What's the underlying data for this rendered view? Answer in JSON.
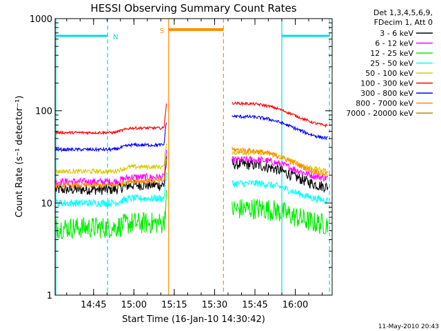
{
  "chart_data": {
    "type": "line",
    "title": "HESSI Observing Summary Count Rates",
    "xlabel": "Start Time (16-Jan-10 14:30:42)",
    "ylabel": "Count Rate (s⁻¹ detector⁻¹)",
    "yscale": "log",
    "ylim": [
      1,
      1000
    ],
    "xlim_minutes": [
      0,
      103
    ],
    "x_ticks": [
      {
        "t": 14.3,
        "label": "14:45"
      },
      {
        "t": 29.3,
        "label": "15:00"
      },
      {
        "t": 44.3,
        "label": "15:15"
      },
      {
        "t": 59.3,
        "label": "15:30"
      },
      {
        "t": 74.3,
        "label": "15:45"
      },
      {
        "t": 89.3,
        "label": "16:00"
      }
    ],
    "y_ticks": [
      {
        "v": 1,
        "label": "1"
      },
      {
        "v": 10,
        "label": "10"
      },
      {
        "v": 100,
        "label": "100"
      },
      {
        "v": 1000,
        "label": "1000"
      }
    ],
    "legend_header": [
      "Det 1,3,4,5,6,9,",
      "FDecim 1, Att 0"
    ],
    "legend_position": "right",
    "series": [
      {
        "name": "3 - 6 keV",
        "color": "#000000",
        "base": 14,
        "post": 28,
        "end": 16,
        "noise": 0.06
      },
      {
        "name": "6 - 12 keV",
        "color": "#ff00ff",
        "base": 17,
        "post": 31,
        "end": 20,
        "noise": 0.04
      },
      {
        "name": "12 - 25 keV",
        "color": "#00ee00",
        "base": 5.4,
        "post": 9,
        "end": 6.3,
        "noise": 0.12
      },
      {
        "name": "25 - 50 keV",
        "color": "#00ffff",
        "base": 10,
        "post": 17,
        "end": 11.5,
        "noise": 0.04
      },
      {
        "name": "50 - 100 keV",
        "color": "#d6c800",
        "base": 22,
        "post": 37,
        "end": 24,
        "noise": 0.025
      },
      {
        "name": "100 - 300 keV",
        "color": "#ff0000",
        "base": 58,
        "post": 128,
        "end": 74,
        "noise": 0.015
      },
      {
        "name": "300 - 800 keV",
        "color": "#0000ff",
        "base": 38,
        "post": 92,
        "end": 54,
        "noise": 0.018
      },
      {
        "name": "800 - 7000 keV",
        "color": "#ff8c00",
        "base": 15.5,
        "post": 40,
        "end": 22,
        "noise": 0.03
      },
      {
        "name": "7000 - 20000 keV",
        "color": "#b8860b",
        "base": 1,
        "post": 1,
        "end": 1,
        "noise": 0
      }
    ],
    "events": [
      {
        "label": "N",
        "color": "#00dddd",
        "start": 0,
        "end": 19.5,
        "level": 650
      },
      {
        "label": "",
        "color": "#00dddd",
        "start": 84.3,
        "end": 102,
        "level": 650
      },
      {
        "label": "S",
        "color": "#ff8c00",
        "start": 42.2,
        "end": 62.6,
        "level": 760
      }
    ],
    "gap": [
      42.2,
      65.8
    ],
    "grid": false
  },
  "timestamp": "11-May-2010 20:43"
}
